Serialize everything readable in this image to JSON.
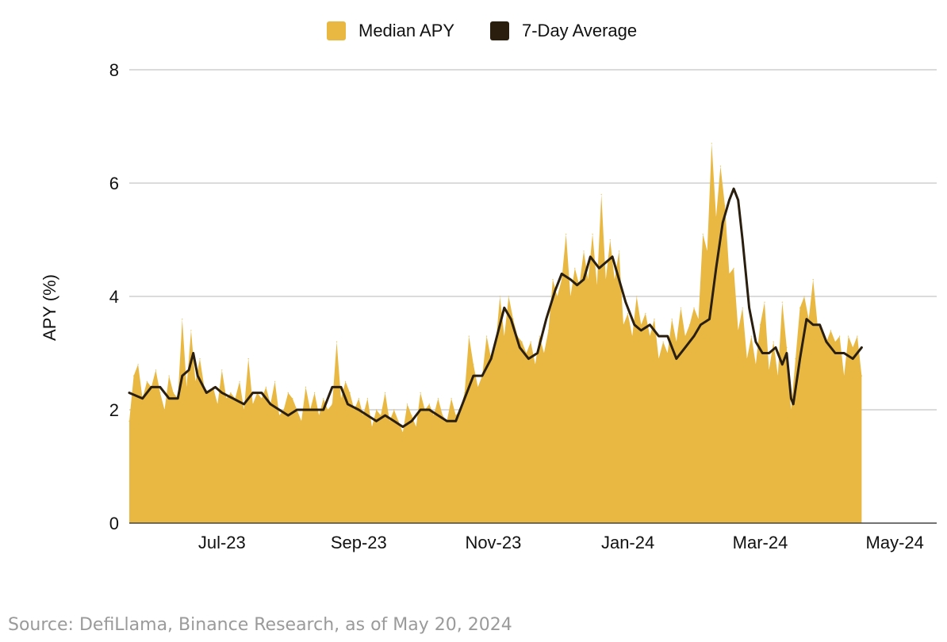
{
  "chart_data": {
    "type": "area",
    "ylabel": "APY (%)",
    "xlabel": "",
    "ylim": [
      0,
      8
    ],
    "yticks": [
      0,
      2,
      4,
      6,
      8
    ],
    "grid": true,
    "legend": "top-center",
    "x_start": "2023-05-20",
    "x_end": "2024-05-20",
    "xticks": [
      {
        "label": "Jul-23",
        "date": "2023-07-01"
      },
      {
        "label": "Sep-23",
        "date": "2023-09-01"
      },
      {
        "label": "Nov-23",
        "date": "2023-11-01"
      },
      {
        "label": "Jan-24",
        "date": "2024-01-01"
      },
      {
        "label": "Mar-24",
        "date": "2024-03-01"
      },
      {
        "label": "May-24",
        "date": "2024-05-01"
      }
    ],
    "series": [
      {
        "name": "Median APY",
        "style": "area",
        "color": "#e8b842",
        "points": [
          [
            "2023-05-20",
            1.8
          ],
          [
            "2023-05-22",
            2.6
          ],
          [
            "2023-05-24",
            2.8
          ],
          [
            "2023-05-26",
            2.2
          ],
          [
            "2023-05-28",
            2.5
          ],
          [
            "2023-05-30",
            2.4
          ],
          [
            "2023-06-01",
            2.7
          ],
          [
            "2023-06-03",
            2.3
          ],
          [
            "2023-06-05",
            2.0
          ],
          [
            "2023-06-07",
            2.6
          ],
          [
            "2023-06-09",
            2.3
          ],
          [
            "2023-06-11",
            2.2
          ],
          [
            "2023-06-13",
            3.6
          ],
          [
            "2023-06-15",
            2.4
          ],
          [
            "2023-06-17",
            3.4
          ],
          [
            "2023-06-19",
            2.5
          ],
          [
            "2023-06-21",
            2.9
          ],
          [
            "2023-06-23",
            2.4
          ],
          [
            "2023-06-25",
            2.3
          ],
          [
            "2023-06-27",
            2.4
          ],
          [
            "2023-06-29",
            2.1
          ],
          [
            "2023-07-01",
            2.7
          ],
          [
            "2023-07-03",
            2.2
          ],
          [
            "2023-07-05",
            2.3
          ],
          [
            "2023-07-07",
            2.2
          ],
          [
            "2023-07-09",
            2.5
          ],
          [
            "2023-07-11",
            2.0
          ],
          [
            "2023-07-13",
            2.9
          ],
          [
            "2023-07-15",
            2.1
          ],
          [
            "2023-07-17",
            2.3
          ],
          [
            "2023-07-19",
            2.2
          ],
          [
            "2023-07-21",
            2.4
          ],
          [
            "2023-07-23",
            2.1
          ],
          [
            "2023-07-25",
            2.5
          ],
          [
            "2023-07-27",
            1.9
          ],
          [
            "2023-07-29",
            2.0
          ],
          [
            "2023-07-31",
            2.3
          ],
          [
            "2023-08-02",
            2.2
          ],
          [
            "2023-08-04",
            2.0
          ],
          [
            "2023-08-06",
            1.8
          ],
          [
            "2023-08-08",
            2.4
          ],
          [
            "2023-08-10",
            2.0
          ],
          [
            "2023-08-12",
            2.3
          ],
          [
            "2023-08-14",
            1.9
          ],
          [
            "2023-08-16",
            2.2
          ],
          [
            "2023-08-18",
            2.0
          ],
          [
            "2023-08-20",
            2.1
          ],
          [
            "2023-08-22",
            3.2
          ],
          [
            "2023-08-24",
            2.2
          ],
          [
            "2023-08-26",
            2.5
          ],
          [
            "2023-08-28",
            2.3
          ],
          [
            "2023-08-30",
            2.0
          ],
          [
            "2023-09-01",
            2.2
          ],
          [
            "2023-09-03",
            1.9
          ],
          [
            "2023-09-05",
            2.2
          ],
          [
            "2023-09-07",
            1.7
          ],
          [
            "2023-09-09",
            2.0
          ],
          [
            "2023-09-11",
            1.9
          ],
          [
            "2023-09-13",
            2.3
          ],
          [
            "2023-09-15",
            1.8
          ],
          [
            "2023-09-17",
            2.0
          ],
          [
            "2023-09-19",
            1.8
          ],
          [
            "2023-09-21",
            1.6
          ],
          [
            "2023-09-23",
            2.1
          ],
          [
            "2023-09-25",
            1.9
          ],
          [
            "2023-09-27",
            1.7
          ],
          [
            "2023-09-29",
            2.3
          ],
          [
            "2023-10-01",
            2.0
          ],
          [
            "2023-10-03",
            2.1
          ],
          [
            "2023-10-05",
            1.9
          ],
          [
            "2023-10-07",
            2.2
          ],
          [
            "2023-10-09",
            1.9
          ],
          [
            "2023-10-11",
            1.8
          ],
          [
            "2023-10-13",
            2.2
          ],
          [
            "2023-10-15",
            1.9
          ],
          [
            "2023-10-17",
            2.0
          ],
          [
            "2023-10-19",
            2.3
          ],
          [
            "2023-10-21",
            3.3
          ],
          [
            "2023-10-23",
            2.8
          ],
          [
            "2023-10-25",
            2.4
          ],
          [
            "2023-10-27",
            2.6
          ],
          [
            "2023-10-29",
            3.3
          ],
          [
            "2023-10-31",
            2.9
          ],
          [
            "2023-11-02",
            3.1
          ],
          [
            "2023-11-04",
            4.0
          ],
          [
            "2023-11-06",
            3.3
          ],
          [
            "2023-11-08",
            4.0
          ],
          [
            "2023-11-10",
            3.6
          ],
          [
            "2023-11-12",
            3.3
          ],
          [
            "2023-11-14",
            3.2
          ],
          [
            "2023-11-16",
            3.0
          ],
          [
            "2023-11-18",
            3.2
          ],
          [
            "2023-11-20",
            2.8
          ],
          [
            "2023-11-22",
            3.3
          ],
          [
            "2023-11-24",
            3.0
          ],
          [
            "2023-11-26",
            3.4
          ],
          [
            "2023-11-28",
            4.3
          ],
          [
            "2023-11-30",
            4.0
          ],
          [
            "2023-12-02",
            4.3
          ],
          [
            "2023-12-04",
            5.1
          ],
          [
            "2023-12-06",
            4.0
          ],
          [
            "2023-12-08",
            4.5
          ],
          [
            "2023-12-10",
            4.2
          ],
          [
            "2023-12-12",
            4.8
          ],
          [
            "2023-12-14",
            4.3
          ],
          [
            "2023-12-16",
            5.1
          ],
          [
            "2023-12-18",
            4.2
          ],
          [
            "2023-12-20",
            5.8
          ],
          [
            "2023-12-22",
            4.3
          ],
          [
            "2023-12-24",
            5.0
          ],
          [
            "2023-12-26",
            4.3
          ],
          [
            "2023-12-28",
            4.8
          ],
          [
            "2023-12-30",
            3.5
          ],
          [
            "2024-01-01",
            3.7
          ],
          [
            "2024-01-03",
            3.3
          ],
          [
            "2024-01-05",
            4.0
          ],
          [
            "2024-01-07",
            3.5
          ],
          [
            "2024-01-09",
            3.7
          ],
          [
            "2024-01-11",
            3.3
          ],
          [
            "2024-01-13",
            3.6
          ],
          [
            "2024-01-15",
            2.9
          ],
          [
            "2024-01-17",
            3.2
          ],
          [
            "2024-01-19",
            3.0
          ],
          [
            "2024-01-21",
            3.6
          ],
          [
            "2024-01-23",
            3.2
          ],
          [
            "2024-01-25",
            3.8
          ],
          [
            "2024-01-27",
            3.3
          ],
          [
            "2024-01-29",
            3.5
          ],
          [
            "2024-01-31",
            3.8
          ],
          [
            "2024-02-02",
            3.6
          ],
          [
            "2024-02-04",
            5.1
          ],
          [
            "2024-02-06",
            4.8
          ],
          [
            "2024-02-08",
            6.7
          ],
          [
            "2024-02-10",
            5.4
          ],
          [
            "2024-02-12",
            6.3
          ],
          [
            "2024-02-14",
            5.6
          ],
          [
            "2024-02-16",
            4.4
          ],
          [
            "2024-02-18",
            4.5
          ],
          [
            "2024-02-20",
            3.4
          ],
          [
            "2024-02-22",
            3.8
          ],
          [
            "2024-02-24",
            2.9
          ],
          [
            "2024-02-26",
            3.3
          ],
          [
            "2024-02-28",
            2.8
          ],
          [
            "2024-03-01",
            3.5
          ],
          [
            "2024-03-03",
            3.9
          ],
          [
            "2024-03-05",
            2.7
          ],
          [
            "2024-03-07",
            3.2
          ],
          [
            "2024-03-09",
            2.6
          ],
          [
            "2024-03-11",
            3.9
          ],
          [
            "2024-03-13",
            3.1
          ],
          [
            "2024-03-15",
            2.0
          ],
          [
            "2024-03-17",
            2.9
          ],
          [
            "2024-03-19",
            3.8
          ],
          [
            "2024-03-21",
            4.0
          ],
          [
            "2024-03-23",
            3.6
          ],
          [
            "2024-03-25",
            4.3
          ],
          [
            "2024-03-27",
            3.5
          ],
          [
            "2024-03-29",
            3.4
          ],
          [
            "2024-03-31",
            3.2
          ],
          [
            "2024-04-02",
            3.4
          ],
          [
            "2024-04-04",
            3.2
          ],
          [
            "2024-04-06",
            3.3
          ],
          [
            "2024-04-08",
            2.6
          ],
          [
            "2024-04-10",
            3.3
          ],
          [
            "2024-04-12",
            3.1
          ],
          [
            "2024-04-14",
            3.3
          ],
          [
            "2024-04-16",
            2.6
          ]
        ]
      },
      {
        "name": "7-Day Average",
        "style": "line",
        "color": "#2a1e0e",
        "points": [
          [
            "2023-05-20",
            2.3
          ],
          [
            "2023-05-26",
            2.2
          ],
          [
            "2023-05-30",
            2.4
          ],
          [
            "2023-06-03",
            2.4
          ],
          [
            "2023-06-07",
            2.2
          ],
          [
            "2023-06-11",
            2.2
          ],
          [
            "2023-06-13",
            2.6
          ],
          [
            "2023-06-16",
            2.7
          ],
          [
            "2023-06-18",
            3.0
          ],
          [
            "2023-06-20",
            2.6
          ],
          [
            "2023-06-24",
            2.3
          ],
          [
            "2023-06-28",
            2.4
          ],
          [
            "2023-07-01",
            2.3
          ],
          [
            "2023-07-06",
            2.2
          ],
          [
            "2023-07-11",
            2.1
          ],
          [
            "2023-07-15",
            2.3
          ],
          [
            "2023-07-19",
            2.3
          ],
          [
            "2023-07-23",
            2.1
          ],
          [
            "2023-07-27",
            2.0
          ],
          [
            "2023-07-31",
            1.9
          ],
          [
            "2023-08-04",
            2.0
          ],
          [
            "2023-08-08",
            2.0
          ],
          [
            "2023-08-12",
            2.0
          ],
          [
            "2023-08-16",
            2.0
          ],
          [
            "2023-08-20",
            2.4
          ],
          [
            "2023-08-24",
            2.4
          ],
          [
            "2023-08-27",
            2.1
          ],
          [
            "2023-09-01",
            2.0
          ],
          [
            "2023-09-05",
            1.9
          ],
          [
            "2023-09-09",
            1.8
          ],
          [
            "2023-09-13",
            1.9
          ],
          [
            "2023-09-17",
            1.8
          ],
          [
            "2023-09-21",
            1.7
          ],
          [
            "2023-09-25",
            1.8
          ],
          [
            "2023-09-29",
            2.0
          ],
          [
            "2023-10-03",
            2.0
          ],
          [
            "2023-10-07",
            1.9
          ],
          [
            "2023-10-11",
            1.8
          ],
          [
            "2023-10-15",
            1.8
          ],
          [
            "2023-10-19",
            2.2
          ],
          [
            "2023-10-23",
            2.6
          ],
          [
            "2023-10-27",
            2.6
          ],
          [
            "2023-10-31",
            2.9
          ],
          [
            "2023-11-04",
            3.5
          ],
          [
            "2023-11-06",
            3.8
          ],
          [
            "2023-11-09",
            3.6
          ],
          [
            "2023-11-13",
            3.1
          ],
          [
            "2023-11-17",
            2.9
          ],
          [
            "2023-11-21",
            3.0
          ],
          [
            "2023-11-25",
            3.6
          ],
          [
            "2023-11-29",
            4.1
          ],
          [
            "2023-12-02",
            4.4
          ],
          [
            "2023-12-06",
            4.3
          ],
          [
            "2023-12-09",
            4.2
          ],
          [
            "2023-12-12",
            4.3
          ],
          [
            "2023-12-15",
            4.7
          ],
          [
            "2023-12-19",
            4.5
          ],
          [
            "2023-12-22",
            4.6
          ],
          [
            "2023-12-25",
            4.7
          ],
          [
            "2023-12-28",
            4.3
          ],
          [
            "2023-12-31",
            3.9
          ],
          [
            "2024-01-04",
            3.5
          ],
          [
            "2024-01-07",
            3.4
          ],
          [
            "2024-01-11",
            3.5
          ],
          [
            "2024-01-15",
            3.3
          ],
          [
            "2024-01-19",
            3.3
          ],
          [
            "2024-01-23",
            2.9
          ],
          [
            "2024-01-27",
            3.1
          ],
          [
            "2024-01-31",
            3.3
          ],
          [
            "2024-02-03",
            3.5
          ],
          [
            "2024-02-07",
            3.6
          ],
          [
            "2024-02-10",
            4.5
          ],
          [
            "2024-02-13",
            5.3
          ],
          [
            "2024-02-16",
            5.7
          ],
          [
            "2024-02-18",
            5.9
          ],
          [
            "2024-02-20",
            5.7
          ],
          [
            "2024-02-22",
            5.0
          ],
          [
            "2024-02-25",
            3.8
          ],
          [
            "2024-02-28",
            3.2
          ],
          [
            "2024-03-02",
            3.0
          ],
          [
            "2024-03-05",
            3.0
          ],
          [
            "2024-03-08",
            3.1
          ],
          [
            "2024-03-11",
            2.8
          ],
          [
            "2024-03-13",
            3.0
          ],
          [
            "2024-03-15",
            2.2
          ],
          [
            "2024-03-16",
            2.1
          ],
          [
            "2024-03-19",
            2.9
          ],
          [
            "2024-03-22",
            3.6
          ],
          [
            "2024-03-25",
            3.5
          ],
          [
            "2024-03-28",
            3.5
          ],
          [
            "2024-03-31",
            3.2
          ],
          [
            "2024-04-04",
            3.0
          ],
          [
            "2024-04-08",
            3.0
          ],
          [
            "2024-04-12",
            2.9
          ],
          [
            "2024-04-16",
            3.1
          ]
        ]
      }
    ]
  },
  "source_note": "Source: DefiLlama, Binance Research, as of May 20, 2024"
}
